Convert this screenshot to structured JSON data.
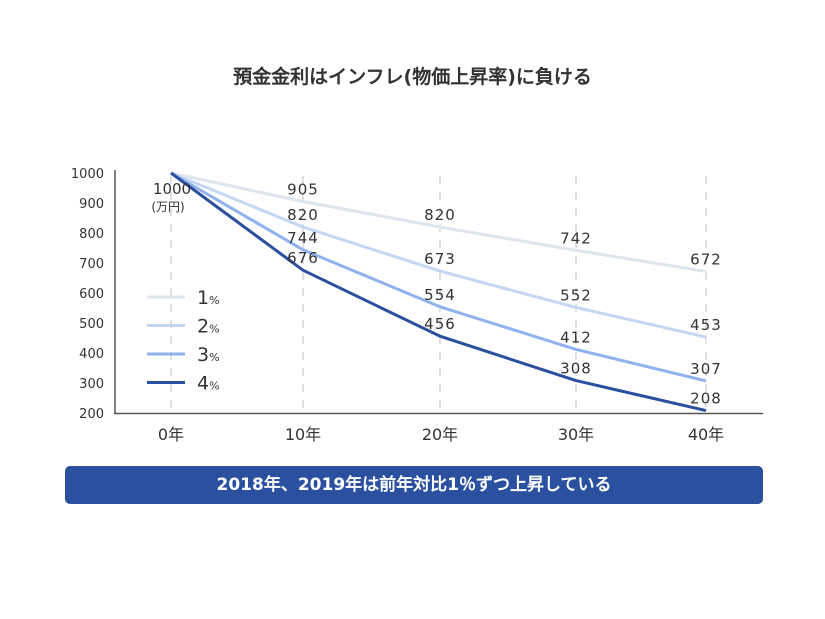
{
  "chart_data": {
    "type": "line",
    "title": "預金金利はインフレ(物価上昇率)に負ける",
    "categories": [
      "0年",
      "10年",
      "20年",
      "30年",
      "40年"
    ],
    "x": [
      0,
      10,
      20,
      30,
      40
    ],
    "ylim": [
      200,
      1000
    ],
    "yticks": [
      1000,
      900,
      800,
      700,
      600,
      500,
      400,
      300,
      200
    ],
    "start_annotation": [
      "1000",
      "(万円)"
    ],
    "grid": "vertical dashed",
    "legend": "left",
    "series": [
      {
        "name": "1",
        "unit": "%",
        "color": "#dfe5f0",
        "values": [
          1000,
          905,
          820,
          742,
          672
        ]
      },
      {
        "name": "2",
        "unit": "%",
        "color": "#c5d6f3",
        "values": [
          1000,
          820,
          673,
          552,
          453
        ]
      },
      {
        "name": "3",
        "unit": "%",
        "color": "#8fb2ef",
        "values": [
          1000,
          744,
          554,
          412,
          307
        ]
      },
      {
        "name": "4",
        "unit": "%",
        "color": "#2a4f9e",
        "values": [
          1000,
          676,
          456,
          308,
          208
        ]
      }
    ]
  },
  "banner": {
    "text": "2018年、2019年は前年対比1％ずつ上昇している",
    "color": "#2b50a0"
  }
}
